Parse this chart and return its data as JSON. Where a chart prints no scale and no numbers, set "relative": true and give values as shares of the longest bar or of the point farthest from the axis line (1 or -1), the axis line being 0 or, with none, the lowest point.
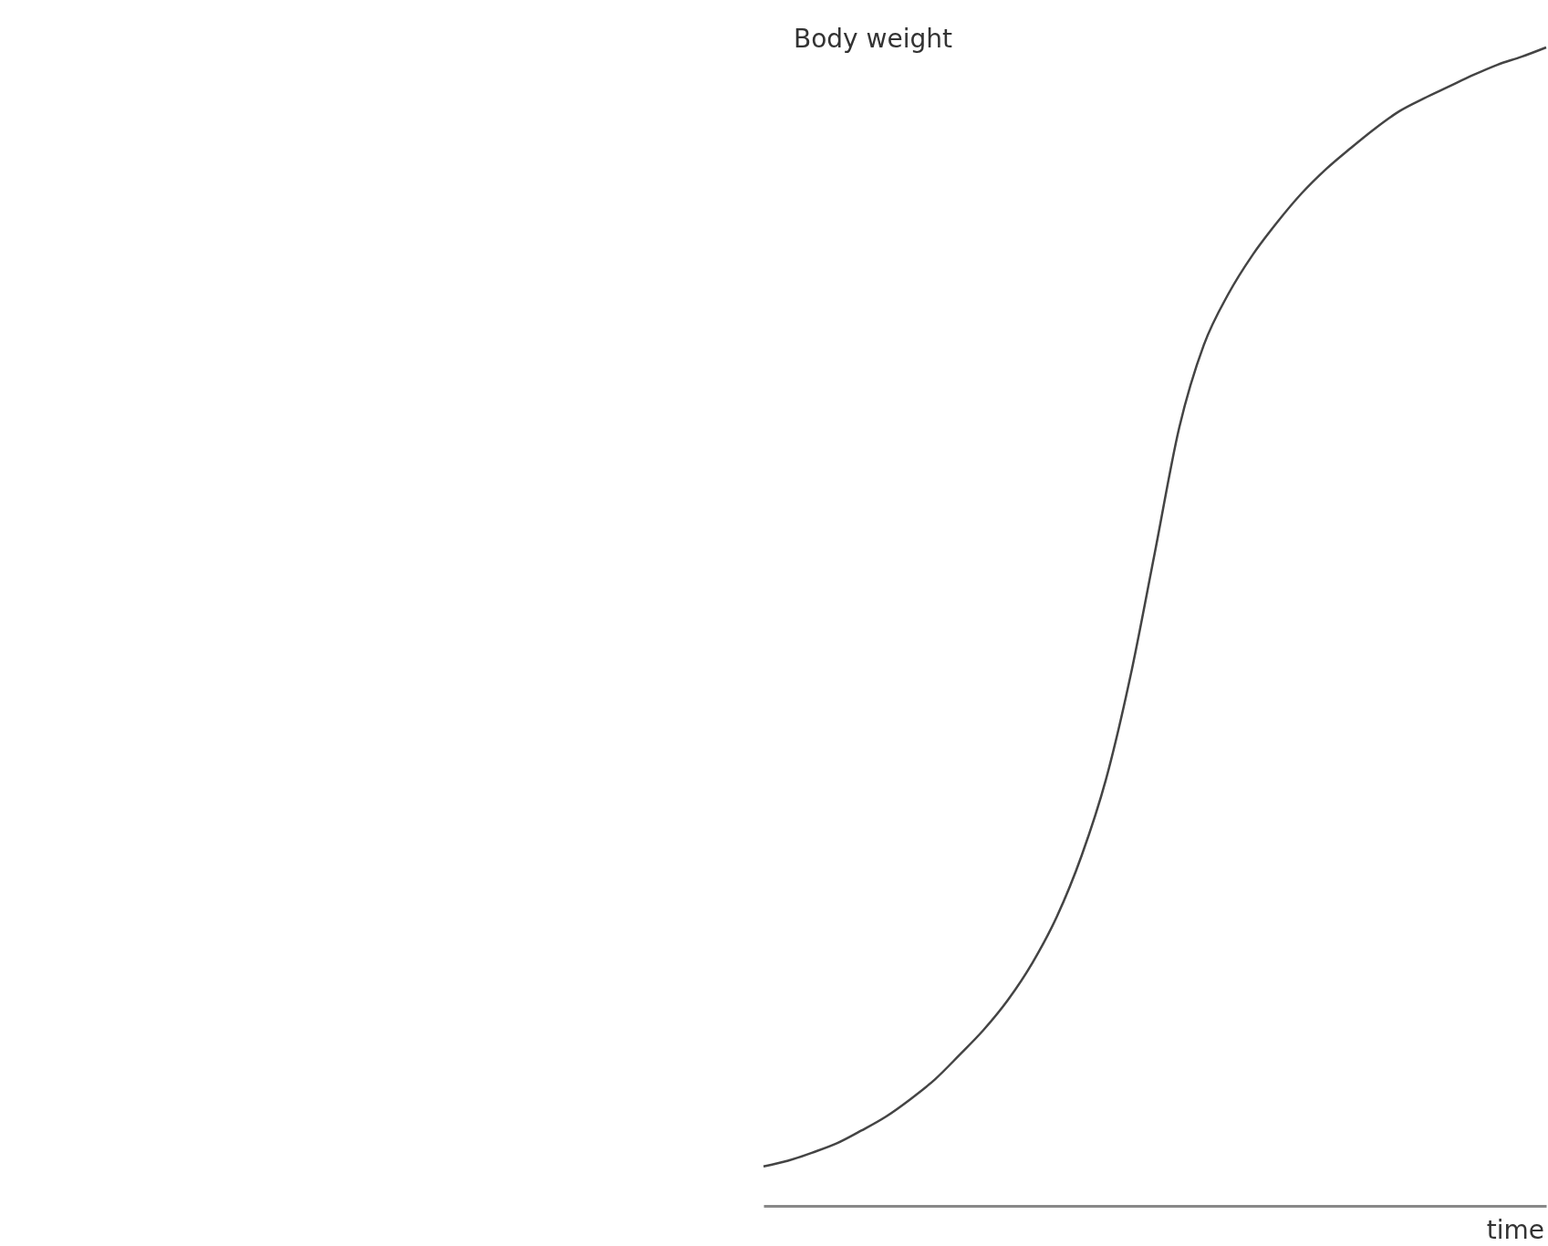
{
  "chart_data": {
    "type": "line",
    "relative": true,
    "ylabel": "Body weight",
    "xlabel": "time",
    "categories": [
      null,
      null,
      null,
      null,
      null,
      null,
      null,
      null,
      null,
      null,
      null,
      null,
      null,
      null,
      null,
      null,
      null,
      null,
      null,
      null,
      null,
      null,
      null,
      null,
      null,
      null,
      null,
      null,
      null,
      null,
      null,
      null,
      null
    ],
    "series": [
      {
        "color": "#444444",
        "values": [
          0.034,
          0.039,
          0.046,
          0.054,
          0.065,
          0.077,
          0.092,
          0.109,
          0.13,
          0.152,
          0.178,
          0.21,
          0.25,
          0.302,
          0.368,
          0.457,
          0.564,
          0.672,
          0.743,
          0.787,
          0.821,
          0.849,
          0.874,
          0.895,
          0.913,
          0.93,
          0.945,
          0.956,
          0.966,
          0.976,
          0.985,
          0.992,
          1
        ]
      }
    ],
    "grid": false,
    "marker": "none",
    "line_style": "solid"
  }
}
